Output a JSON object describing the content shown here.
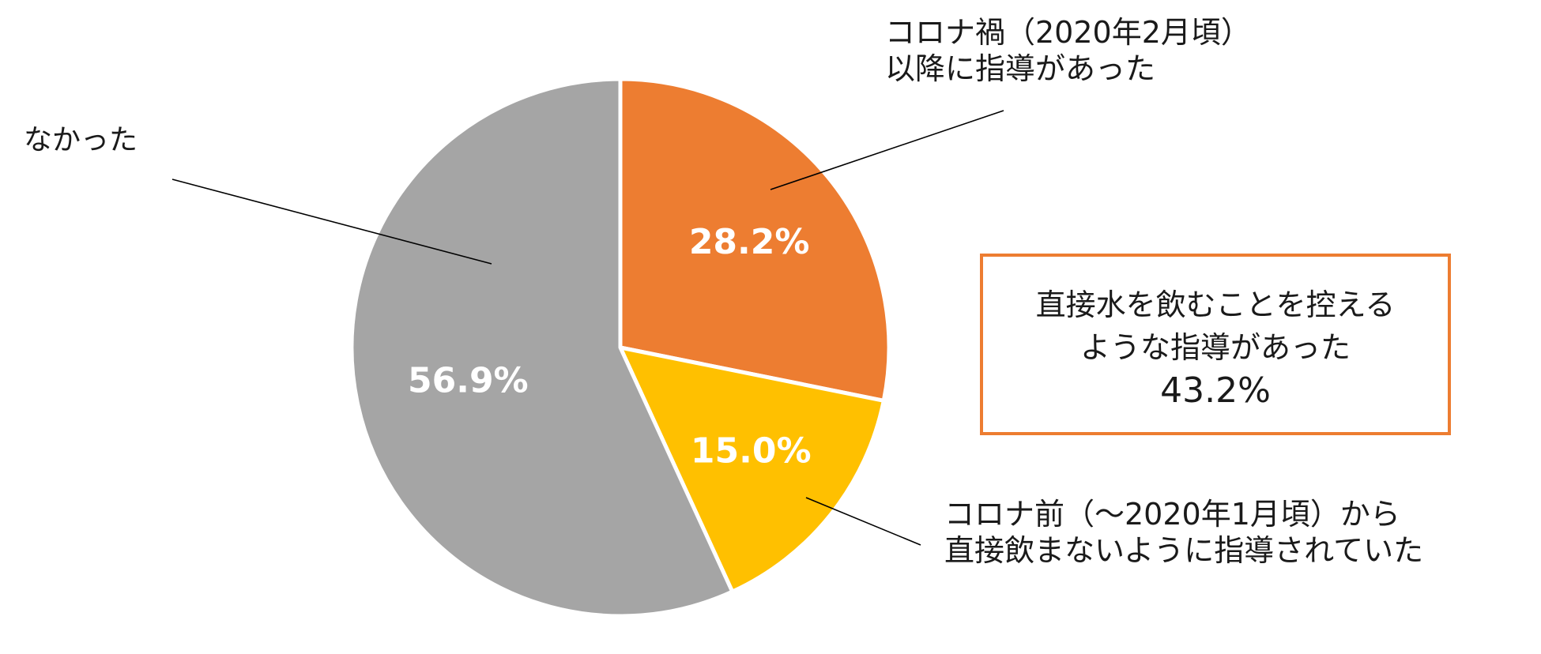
{
  "chart_data": {
    "type": "pie",
    "slices": [
      {
        "value_label": "28.2%",
        "value": 28.2,
        "label_lines": [
          "コロナ禍（2020年2月頃）",
          "以降に指導があった"
        ],
        "color": "#ED7D31"
      },
      {
        "value_label": "15.0%",
        "value": 15.0,
        "label_lines": [
          "コロナ前（～2020年1月頃）から",
          "直接飲まないように指導されていた"
        ],
        "color": "#FFC000"
      },
      {
        "value_label": "56.9%",
        "value": 56.9,
        "label_lines": [
          "なかった"
        ],
        "color": "#A5A5A5"
      }
    ],
    "start_angle": "top",
    "direction": "clockwise"
  },
  "summary": {
    "lines": [
      "直接水を飲むことを控える",
      "ような指導があった"
    ],
    "value": "43.2%",
    "border_color": "#ED7D31"
  }
}
